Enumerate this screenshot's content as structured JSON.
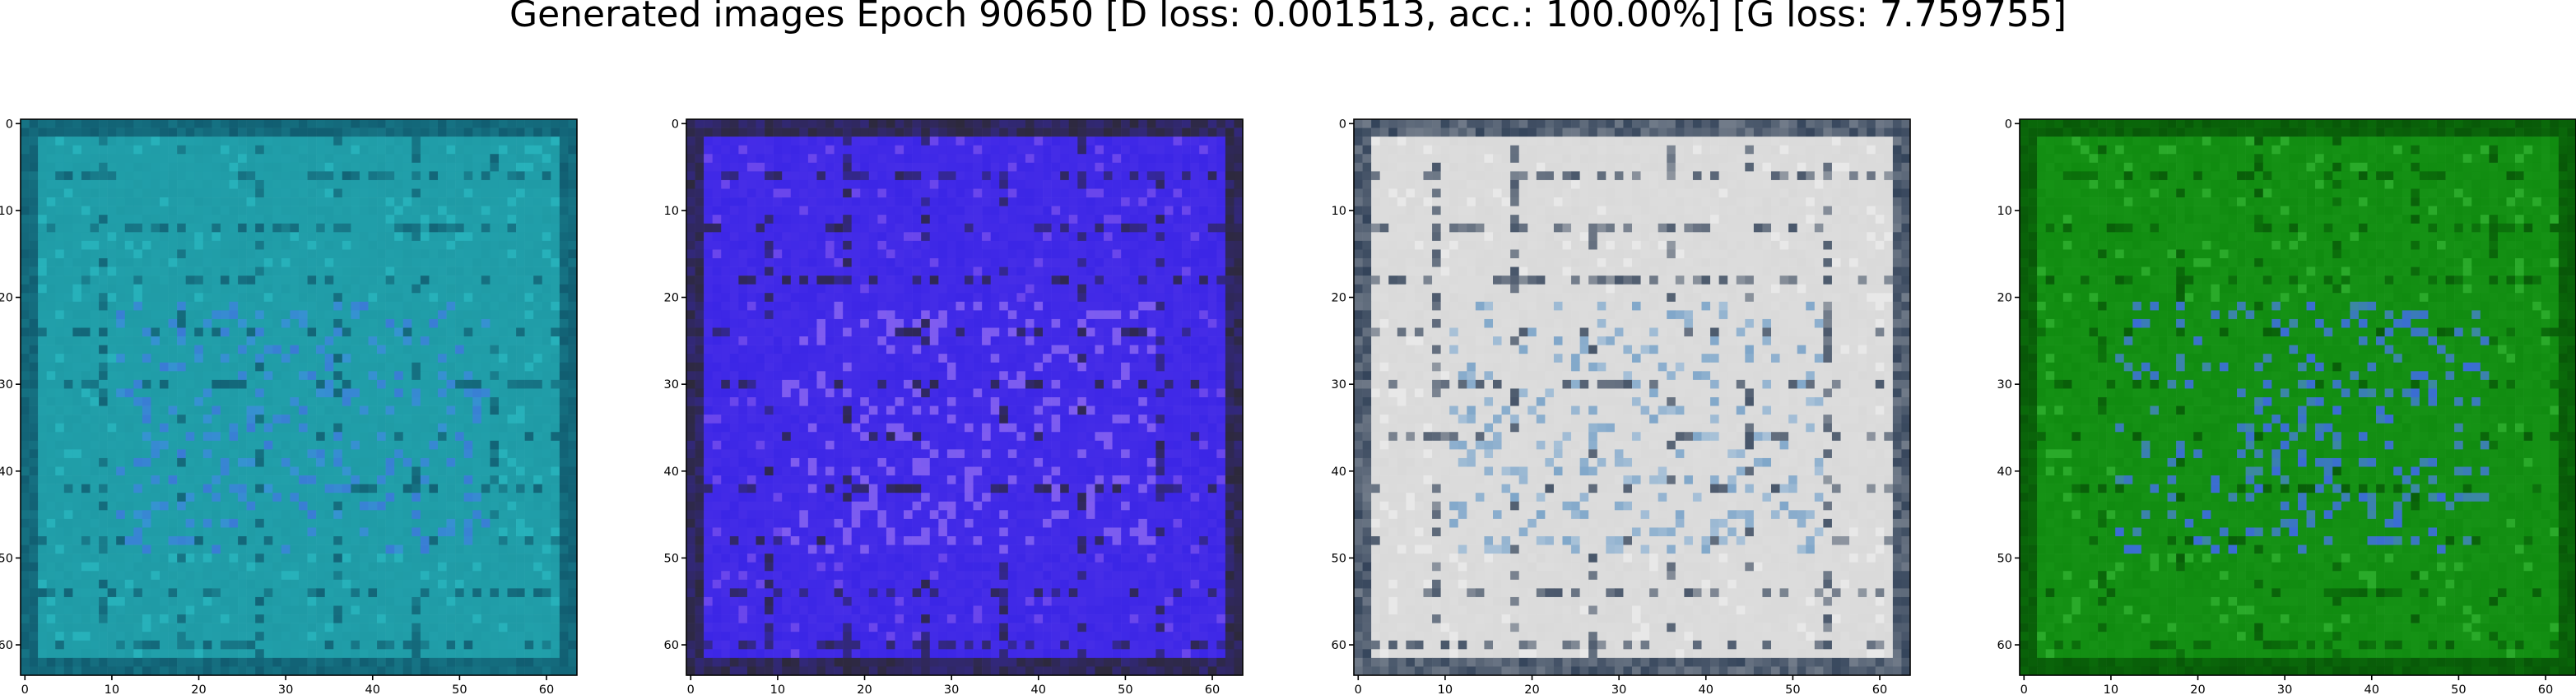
{
  "figure": {
    "title": "Generated images Epoch 90650 [D loss: 0.001513, acc.: 100.00%] [G loss: 7.759755]"
  },
  "axes_ticks": {
    "x": [
      "0",
      "10",
      "20",
      "30",
      "40",
      "50",
      "60"
    ],
    "y": [
      "0",
      "10",
      "20",
      "30",
      "40",
      "50",
      "60"
    ]
  },
  "panels": [
    {
      "name": "sample-1",
      "base": "#1f9aa5",
      "accent": "#3a7bd5",
      "dark": "#0d4d63",
      "light": "#2cc0c8"
    },
    {
      "name": "sample-2",
      "base": "#3a25e6",
      "accent": "#7b5cf0",
      "dark": "#2a2a10",
      "light": "#8a5cf0"
    },
    {
      "name": "sample-3",
      "base": "#d9d9d9",
      "accent": "#7fa6c9",
      "dark": "#0a1e3a",
      "light": "#f2f2f2"
    },
    {
      "name": "sample-4",
      "base": "#0f8a0f",
      "accent": "#3a6bd6",
      "dark": "#064a06",
      "light": "#3cc03c"
    }
  ]
}
